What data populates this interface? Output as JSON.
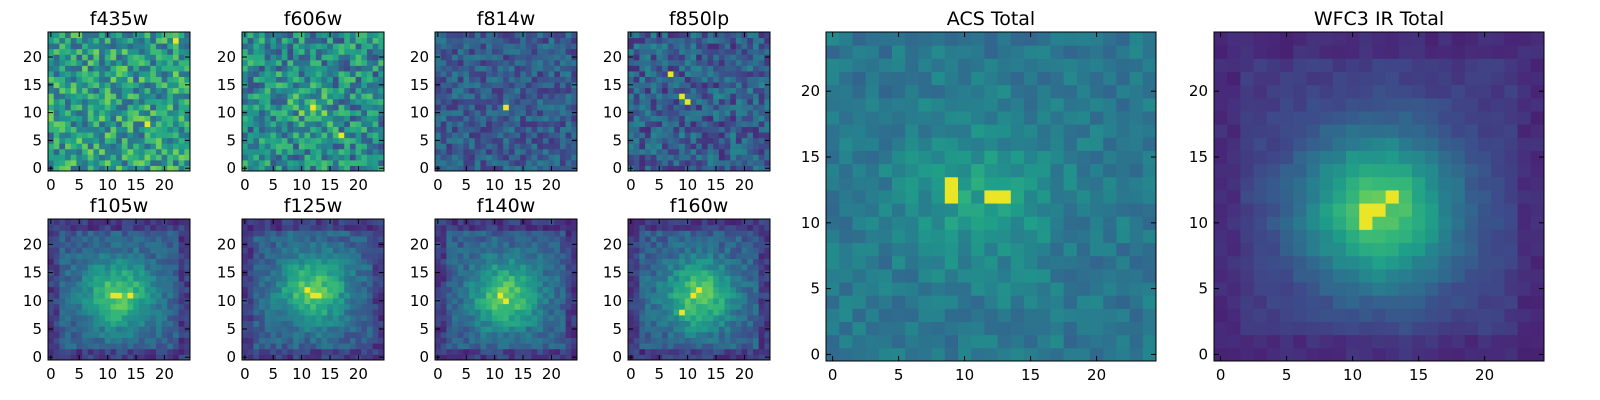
{
  "figure": {
    "colormap": [
      "#440154",
      "#482878",
      "#3e4989",
      "#31688e",
      "#26828e",
      "#1f9e89",
      "#35b779",
      "#6ece58",
      "#b5de2b",
      "#fde725"
    ]
  },
  "chart_data": [
    {
      "type": "heatmap",
      "title": "f435w",
      "grid_size": [
        25,
        25
      ],
      "xlim": [
        0,
        24
      ],
      "ylim": [
        0,
        24
      ],
      "xticks": [
        0,
        5,
        10,
        15,
        20
      ],
      "yticks": [
        0,
        5,
        10,
        15,
        20
      ],
      "xtick_labels": [
        "0",
        "5",
        "10",
        "15",
        "20"
      ],
      "ytick_labels": [
        "0",
        "5",
        "10",
        "15",
        "20"
      ],
      "pattern": "noise",
      "center": [
        12,
        12
      ],
      "peak_values": [
        [
          22,
          23
        ],
        [
          17,
          8
        ]
      ]
    },
    {
      "type": "heatmap",
      "title": "f606w",
      "grid_size": [
        25,
        25
      ],
      "xlim": [
        0,
        24
      ],
      "ylim": [
        0,
        24
      ],
      "xticks": [
        0,
        5,
        10,
        15,
        20
      ],
      "yticks": [
        0,
        5,
        10,
        15,
        20
      ],
      "xtick_labels": [
        "0",
        "5",
        "10",
        "15",
        "20"
      ],
      "ytick_labels": [
        "0",
        "5",
        "10",
        "15",
        "20"
      ],
      "pattern": "noise-with-faint-source",
      "center": [
        12,
        11
      ],
      "peak_values": [
        [
          12,
          11
        ],
        [
          17,
          6
        ]
      ]
    },
    {
      "type": "heatmap",
      "title": "f814w",
      "grid_size": [
        25,
        25
      ],
      "xlim": [
        0,
        24
      ],
      "ylim": [
        0,
        24
      ],
      "xticks": [
        0,
        5,
        10,
        15,
        20
      ],
      "yticks": [
        0,
        5,
        10,
        15,
        20
      ],
      "xtick_labels": [
        "0",
        "5",
        "10",
        "15",
        "20"
      ],
      "ytick_labels": [
        "0",
        "5",
        "10",
        "15",
        "20"
      ],
      "pattern": "noise-with-point",
      "center": [
        12,
        11
      ],
      "peak_values": [
        [
          12,
          11
        ]
      ]
    },
    {
      "type": "heatmap",
      "title": "f850lp",
      "grid_size": [
        25,
        25
      ],
      "xlim": [
        0,
        24
      ],
      "ylim": [
        0,
        24
      ],
      "xticks": [
        0,
        5,
        10,
        15,
        20
      ],
      "yticks": [
        0,
        5,
        10,
        15,
        20
      ],
      "xtick_labels": [
        "0",
        "5",
        "10",
        "15",
        "20"
      ],
      "ytick_labels": [
        "0",
        "5",
        "10",
        "15",
        "20"
      ],
      "pattern": "noise-with-points",
      "center": [
        9,
        13
      ],
      "peak_values": [
        [
          7,
          17
        ],
        [
          9,
          13
        ],
        [
          10,
          12
        ]
      ]
    },
    {
      "type": "heatmap",
      "title": "f105w",
      "grid_size": [
        25,
        25
      ],
      "xlim": [
        0,
        24
      ],
      "ylim": [
        0,
        24
      ],
      "xticks": [
        0,
        5,
        10,
        15,
        20
      ],
      "yticks": [
        0,
        5,
        10,
        15,
        20
      ],
      "xtick_labels": [
        "0",
        "5",
        "10",
        "15",
        "20"
      ],
      "ytick_labels": [
        "0",
        "5",
        "10",
        "15",
        "20"
      ],
      "pattern": "extended-source",
      "center": [
        12,
        11
      ],
      "peak_values": [
        [
          11,
          11
        ],
        [
          12,
          11
        ],
        [
          14,
          11
        ]
      ]
    },
    {
      "type": "heatmap",
      "title": "f125w",
      "grid_size": [
        25,
        25
      ],
      "xlim": [
        0,
        24
      ],
      "ylim": [
        0,
        24
      ],
      "xticks": [
        0,
        5,
        10,
        15,
        20
      ],
      "yticks": [
        0,
        5,
        10,
        15,
        20
      ],
      "xtick_labels": [
        "0",
        "5",
        "10",
        "15",
        "20"
      ],
      "ytick_labels": [
        "0",
        "5",
        "10",
        "15",
        "20"
      ],
      "pattern": "extended-source",
      "center": [
        12,
        12
      ],
      "peak_values": [
        [
          11,
          12
        ],
        [
          12,
          11
        ],
        [
          13,
          11
        ]
      ]
    },
    {
      "type": "heatmap",
      "title": "f140w",
      "grid_size": [
        25,
        25
      ],
      "xlim": [
        0,
        24
      ],
      "ylim": [
        0,
        24
      ],
      "xticks": [
        0,
        5,
        10,
        15,
        20
      ],
      "yticks": [
        0,
        5,
        10,
        15,
        20
      ],
      "xtick_labels": [
        "0",
        "5",
        "10",
        "15",
        "20"
      ],
      "ytick_labels": [
        "0",
        "5",
        "10",
        "15",
        "20"
      ],
      "pattern": "extended-source",
      "center": [
        12,
        11
      ],
      "peak_values": [
        [
          12,
          10
        ],
        [
          11,
          11
        ]
      ]
    },
    {
      "type": "heatmap",
      "title": "f160w",
      "grid_size": [
        25,
        25
      ],
      "xlim": [
        0,
        24
      ],
      "ylim": [
        0,
        24
      ],
      "xticks": [
        0,
        5,
        10,
        15,
        20
      ],
      "yticks": [
        0,
        5,
        10,
        15,
        20
      ],
      "xtick_labels": [
        "0",
        "5",
        "10",
        "15",
        "20"
      ],
      "ytick_labels": [
        "0",
        "5",
        "10",
        "15",
        "20"
      ],
      "pattern": "extended-source",
      "center": [
        12,
        11
      ],
      "peak_values": [
        [
          12,
          12
        ],
        [
          11,
          11
        ],
        [
          9,
          8
        ]
      ]
    },
    {
      "type": "heatmap",
      "title": "ACS Total",
      "grid_size": [
        25,
        25
      ],
      "xlim": [
        0,
        24
      ],
      "ylim": [
        0,
        24
      ],
      "xticks": [
        0,
        5,
        10,
        15,
        20
      ],
      "yticks": [
        0,
        5,
        10,
        15,
        20
      ],
      "xtick_labels": [
        "0",
        "5",
        "10",
        "15",
        "20"
      ],
      "ytick_labels": [
        "0",
        "5",
        "10",
        "15",
        "20"
      ],
      "pattern": "faint-source",
      "center": [
        11,
        12
      ],
      "peak_values": [
        [
          9,
          13
        ],
        [
          9,
          12
        ],
        [
          12,
          12
        ],
        [
          13,
          12
        ]
      ]
    },
    {
      "type": "heatmap",
      "title": "WFC3 IR Total",
      "grid_size": [
        25,
        25
      ],
      "xlim": [
        0,
        24
      ],
      "ylim": [
        0,
        24
      ],
      "xticks": [
        0,
        5,
        10,
        15,
        20
      ],
      "yticks": [
        0,
        5,
        10,
        15,
        20
      ],
      "xtick_labels": [
        "0",
        "5",
        "10",
        "15",
        "20"
      ],
      "ytick_labels": [
        "0",
        "5",
        "10",
        "15",
        "20"
      ],
      "pattern": "bright-extended-source",
      "center": [
        12,
        11
      ],
      "peak_values": [
        [
          11,
          11
        ],
        [
          11,
          10
        ],
        [
          12,
          11
        ],
        [
          13,
          12
        ]
      ]
    }
  ]
}
